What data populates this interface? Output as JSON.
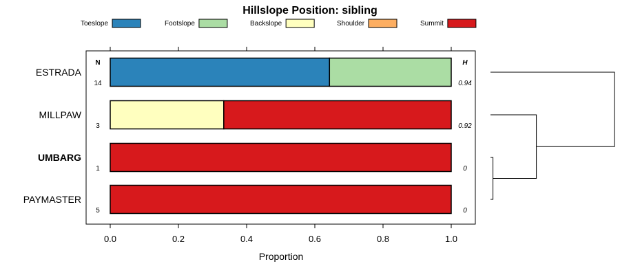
{
  "chart_data": {
    "type": "bar",
    "orientation": "horizontal-stacked",
    "title": "Hillslope Position: sibling",
    "xlabel": "Proportion",
    "xlim": [
      0,
      1
    ],
    "x_ticks": [
      "0.0",
      "0.2",
      "0.4",
      "0.6",
      "0.8",
      "1.0"
    ],
    "x_tick_values": [
      0,
      0.2,
      0.4,
      0.6,
      0.8,
      1.0
    ],
    "n_header": "N",
    "h_header": "H",
    "legend_position": "top",
    "classes": [
      {
        "name": "Toeslope",
        "color": "#2b83ba"
      },
      {
        "name": "Footslope",
        "color": "#abdda4"
      },
      {
        "name": "Backslope",
        "color": "#ffffbf"
      },
      {
        "name": "Shoulder",
        "color": "#fdae61"
      },
      {
        "name": "Summit",
        "color": "#d7191c"
      }
    ],
    "rows": [
      {
        "label": "ESTRADA",
        "bold": false,
        "n": "14",
        "h": "0.94",
        "values": [
          0.643,
          0.357,
          0,
          0,
          0
        ]
      },
      {
        "label": "MILLPAW",
        "bold": false,
        "n": "3",
        "h": "0.92",
        "values": [
          0,
          0,
          0.333,
          0,
          0.667
        ]
      },
      {
        "label": "UMBARG",
        "bold": true,
        "n": "1",
        "h": "0",
        "values": [
          0,
          0,
          0,
          0,
          1.0
        ]
      },
      {
        "label": "PAYMASTER",
        "bold": false,
        "n": "5",
        "h": "0",
        "values": [
          0,
          0,
          0,
          0,
          1.0
        ]
      }
    ],
    "dendrogram": {
      "merges": [
        {
          "a": "UMBARG",
          "b": "PAYMASTER",
          "height": 0.02
        },
        {
          "a": "MILLPAW",
          "b": "UMBARG+PAYMASTER",
          "height": 0.37
        },
        {
          "a": "ESTRADA",
          "b": "MILLPAW+UMBARG+PAYMASTER",
          "height": 1.0
        }
      ]
    }
  }
}
